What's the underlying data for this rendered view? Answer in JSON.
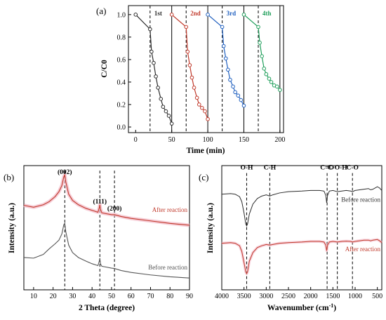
{
  "colors": {
    "black": "#2b2b2b",
    "red": "#c0392b",
    "blue": "#1f5fbf",
    "green": "#1e9e5a",
    "gray": "#555555",
    "pink": "#f2b8c6"
  },
  "chart_data": [
    {
      "type": "line",
      "panel_label": "(a)",
      "xlabel": "Time (min)",
      "ylabel": "C/C0",
      "xlim": [
        -10,
        205
      ],
      "ylim": [
        -0.05,
        1.08
      ],
      "xticks": [
        0,
        50,
        100,
        150,
        200
      ],
      "yticks": [
        0.0,
        0.2,
        0.4,
        0.6,
        0.8,
        1.0
      ],
      "dashed_lines_x": [
        20,
        70,
        120,
        170
      ],
      "solid_lines_x": [
        50,
        100,
        150,
        200
      ],
      "series": [
        {
          "name": "1st",
          "color": "#2b2b2b",
          "x": [
            0,
            20,
            22,
            25,
            28,
            31,
            35,
            38,
            42,
            46,
            50
          ],
          "y": [
            1.0,
            0.87,
            0.67,
            0.57,
            0.45,
            0.35,
            0.25,
            0.18,
            0.14,
            0.1,
            0.03
          ]
        },
        {
          "name": "2nd",
          "color": "#c0392b",
          "x": [
            50,
            70,
            72,
            75,
            78,
            81,
            85,
            88,
            92,
            96,
            100
          ],
          "y": [
            1.0,
            0.89,
            0.67,
            0.55,
            0.44,
            0.35,
            0.26,
            0.2,
            0.17,
            0.14,
            0.07
          ]
        },
        {
          "name": "3rd",
          "color": "#1f5fbf",
          "x": [
            100,
            120,
            122,
            125,
            128,
            131,
            135,
            138,
            142,
            146,
            150
          ],
          "y": [
            1.0,
            0.89,
            0.72,
            0.61,
            0.51,
            0.42,
            0.36,
            0.31,
            0.28,
            0.24,
            0.19
          ]
        },
        {
          "name": "4th",
          "color": "#1e9e5a",
          "x": [
            150,
            170,
            172,
            175,
            178,
            181,
            185,
            188,
            192,
            196,
            200
          ],
          "y": [
            1.0,
            0.89,
            0.75,
            0.63,
            0.52,
            0.47,
            0.43,
            0.4,
            0.37,
            0.36,
            0.33
          ]
        }
      ]
    },
    {
      "type": "line",
      "panel_label": "(b)",
      "xlabel": "2 Theta (degree)",
      "ylabel": "Intensity (a.u.)",
      "xlim": [
        5,
        90
      ],
      "ylim": [
        0,
        10
      ],
      "xticks": [
        10,
        20,
        30,
        40,
        50,
        60,
        70,
        80,
        90
      ],
      "peak_labels": [
        {
          "text": "(002)",
          "x": 26
        },
        {
          "text": "(111)",
          "x": 44
        },
        {
          "text": "(200)",
          "x": 51.5
        }
      ],
      "series": [
        {
          "name": "After reaction",
          "color": "#c0392b",
          "x": [
            5,
            10,
            15,
            18,
            21,
            23,
            24.5,
            25.5,
            26,
            26.5,
            28,
            30,
            33,
            37,
            40,
            43,
            43.7,
            44,
            44.3,
            45,
            50,
            51.5,
            55,
            60,
            70,
            80,
            90
          ],
          "y": [
            6.8,
            6.65,
            6.85,
            7.1,
            7.5,
            7.9,
            8.4,
            9.1,
            9.25,
            8.7,
            7.7,
            7.2,
            6.85,
            6.55,
            6.4,
            6.25,
            6.6,
            6.85,
            6.5,
            6.2,
            6.05,
            6.05,
            5.9,
            5.75,
            5.55,
            5.35,
            5.2
          ]
        },
        {
          "name": "Before reaction",
          "color": "#555555",
          "x": [
            5,
            10,
            15,
            18,
            21,
            23,
            24.5,
            25.5,
            26,
            26.5,
            28,
            30,
            33,
            37,
            40,
            43,
            43.7,
            44,
            44.3,
            45,
            50,
            51.5,
            55,
            60,
            70,
            80,
            90
          ],
          "y": [
            2.6,
            2.55,
            2.85,
            3.3,
            3.7,
            4.0,
            4.5,
            5.25,
            5.35,
            4.7,
            3.6,
            3.0,
            2.6,
            2.3,
            2.1,
            1.95,
            2.3,
            2.55,
            2.1,
            1.9,
            1.75,
            1.72,
            1.55,
            1.4,
            1.2,
            1.05,
            0.95
          ]
        }
      ]
    },
    {
      "type": "line",
      "panel_label": "(c)",
      "xlabel": "Wavenumber (cm-1)",
      "ylabel": "Intensity (a.u.)",
      "xlim": [
        4000,
        400
      ],
      "ylim": [
        0,
        10
      ],
      "x_reversed": true,
      "xticks": [
        4000,
        3500,
        3000,
        2500,
        2000,
        1500,
        1000,
        500
      ],
      "band_labels": [
        {
          "text": "O-H",
          "x": 3440
        },
        {
          "text": "C-H",
          "x": 2920
        },
        {
          "text": "C=O",
          "x": 1630
        },
        {
          "text": "C-O-H",
          "x": 1400
        },
        {
          "text": "C-O",
          "x": 1060
        }
      ],
      "series": [
        {
          "name": "Before reaction",
          "color": "#2b2b2b",
          "x": [
            4000,
            3800,
            3700,
            3600,
            3550,
            3500,
            3460,
            3440,
            3420,
            3380,
            3300,
            3200,
            3100,
            3000,
            2920,
            2850,
            2700,
            2500,
            2200,
            2000,
            1800,
            1700,
            1660,
            1640,
            1620,
            1580,
            1500,
            1400,
            1300,
            1200,
            1100,
            1060,
            1000,
            900,
            800,
            700,
            650,
            600,
            500,
            450,
            400
          ],
          "y": [
            7.7,
            7.75,
            7.7,
            7.5,
            7.1,
            6.2,
            5.3,
            5.15,
            5.3,
            6.1,
            6.9,
            7.35,
            7.55,
            7.65,
            7.55,
            7.65,
            7.8,
            7.9,
            7.95,
            8.0,
            8.0,
            7.95,
            7.6,
            7.0,
            7.6,
            7.95,
            8.0,
            7.9,
            7.95,
            8.0,
            7.95,
            7.9,
            8.0,
            8.05,
            8.1,
            8.15,
            8.05,
            8.1,
            8.3,
            8.2,
            8.0
          ]
        },
        {
          "name": "After reaction",
          "color": "#c0392b",
          "x": [
            4000,
            3800,
            3700,
            3600,
            3550,
            3500,
            3460,
            3440,
            3420,
            3380,
            3300,
            3200,
            3100,
            3000,
            2920,
            2850,
            2700,
            2500,
            2200,
            2000,
            1800,
            1700,
            1660,
            1640,
            1620,
            1580,
            1500,
            1400,
            1300,
            1200,
            1100,
            1060,
            1000,
            900,
            800,
            700,
            650,
            600,
            500,
            450,
            400
          ],
          "y": [
            3.75,
            3.8,
            3.75,
            3.55,
            3.1,
            2.2,
            1.45,
            1.3,
            1.45,
            2.3,
            3.0,
            3.4,
            3.55,
            3.65,
            3.6,
            3.65,
            3.75,
            3.8,
            3.85,
            3.9,
            3.9,
            3.85,
            3.6,
            3.15,
            3.6,
            3.85,
            3.9,
            3.85,
            3.9,
            3.92,
            3.9,
            3.85,
            3.9,
            3.95,
            4.0,
            4.0,
            3.95,
            4.0,
            4.05,
            3.95,
            3.8
          ]
        }
      ]
    }
  ]
}
